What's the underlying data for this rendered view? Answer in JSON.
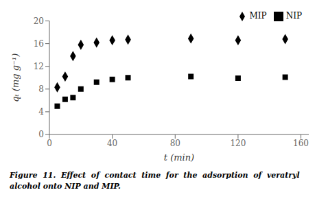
{
  "chart_data": {
    "type": "scatter",
    "xlabel": "t (min)",
    "ylabel": "qₜ (mg g⁻¹)",
    "xlim": [
      0,
      165
    ],
    "ylim": [
      0,
      20
    ],
    "xticks": [
      0,
      40,
      80,
      120,
      160
    ],
    "yticks": [
      0,
      4,
      8,
      12,
      16,
      20
    ],
    "legend": "upper right",
    "grid": false,
    "annotations": [
      "Figure  11.",
      "  Effect  of  contact  time  for  the  adsorption  of  veratryl",
      "alcohol onto NIP and MIP."
    ],
    "series": [
      {
        "name": "NIP",
        "color": "#000000",
        "marker": "square",
        "x": [
          5,
          10,
          15,
          20,
          30,
          40,
          50,
          90,
          120,
          150
        ],
        "values": [
          5.0,
          6.2,
          6.5,
          8.0,
          9.2,
          9.7,
          10.0,
          10.2,
          9.9,
          10.1
        ]
      },
      {
        "name": "MIP",
        "color": "#000000",
        "marker": "diamond",
        "x": [
          5,
          10,
          15,
          20,
          30,
          40,
          50,
          90,
          120,
          150
        ],
        "values": [
          8.3,
          10.2,
          13.8,
          15.8,
          16.2,
          16.6,
          16.7,
          16.9,
          16.6,
          16.8
        ]
      }
    ]
  }
}
